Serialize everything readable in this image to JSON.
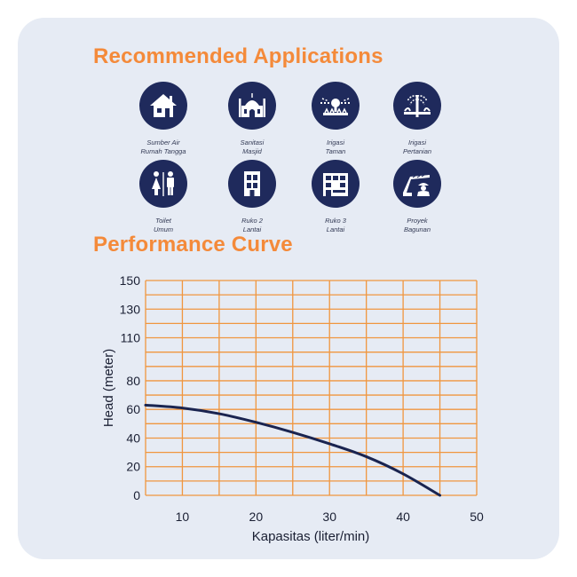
{
  "sections": {
    "applications_title": "Recommended Applications",
    "performance_title": "Performance Curve"
  },
  "applications": [
    {
      "icon": "house-icon",
      "line1": "Sumber Air",
      "line2": "Rumah Tangga"
    },
    {
      "icon": "mosque-icon",
      "line1": "Sanitasi",
      "line2": "Masjid"
    },
    {
      "icon": "garden-sprinkler-icon",
      "line1": "Irigasi",
      "line2": "Taman"
    },
    {
      "icon": "farm-irrigation-icon",
      "line1": "Irigasi",
      "line2": "Pertanian"
    },
    {
      "icon": "restroom-icon",
      "line1": "Toilet",
      "line2": "Umum"
    },
    {
      "icon": "two-storey-building-icon",
      "line1": "Ruko 2",
      "line2": "Lantai"
    },
    {
      "icon": "three-storey-building-icon",
      "line1": "Ruko 3",
      "line2": "Lantai"
    },
    {
      "icon": "construction-worker-icon",
      "line1": "Proyek",
      "line2": "Bagunan"
    }
  ],
  "colors": {
    "accent": "#f48a3a",
    "icon_bg": "#1f2a5c",
    "grid": "#f0963f",
    "curve": "#1a2450",
    "card_bg": "#e6ebf4"
  },
  "chart_data": {
    "type": "line",
    "title": "Performance Curve",
    "xlabel": "Kapasitas (liter/min)",
    "ylabel": "Head (meter)",
    "xlim": [
      5,
      50
    ],
    "ylim": [
      0,
      150
    ],
    "x_ticks": [
      10,
      20,
      30,
      40,
      50
    ],
    "y_ticks": [
      0,
      20,
      40,
      60,
      80,
      110,
      130,
      150
    ],
    "grid": true,
    "series": [
      {
        "x": [
          5,
          10,
          15,
          20,
          25,
          30,
          35,
          40,
          45
        ],
        "y": [
          63,
          61,
          57,
          51,
          44,
          36,
          27,
          15,
          0
        ]
      }
    ]
  }
}
